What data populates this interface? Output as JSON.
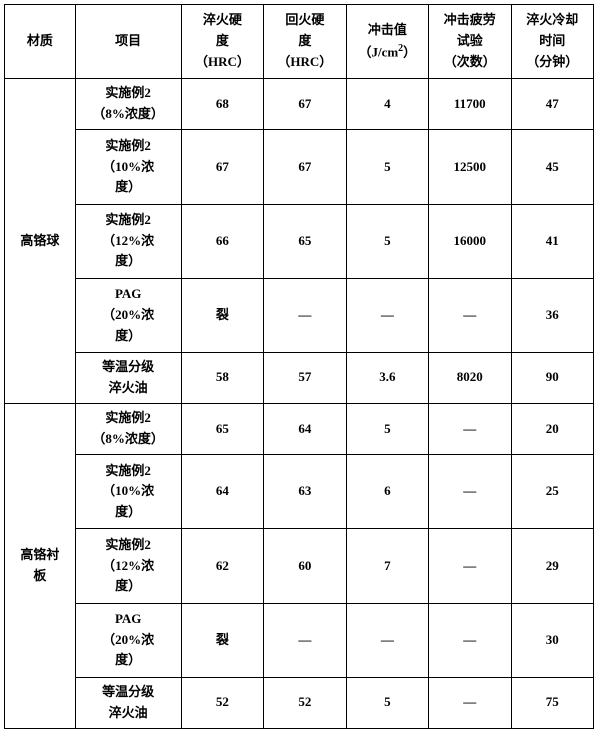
{
  "table": {
    "headers": {
      "material": "材质",
      "item": "项目",
      "quench_hardness": {
        "l1": "淬火硬",
        "l2": "度",
        "l3": "（HRC）"
      },
      "temper_hardness": {
        "l1": "回火硬",
        "l2": "度",
        "l3": "（HRC）"
      },
      "impact_value": {
        "l1": "冲击值",
        "l2_pre": "（J/cm",
        "l2_sup": "2",
        "l2_post": "）"
      },
      "fatigue_test": {
        "l1": "冲击疲劳",
        "l2": "试验",
        "l3": "（次数）"
      },
      "cooling_time": {
        "l1": "淬火冷却",
        "l2": "时间",
        "l3": "（分钟）"
      }
    },
    "groups": [
      {
        "material": "高铬球",
        "rows": [
          {
            "item_l1": "实施例2",
            "item_l2": "（8%浓度）",
            "quench": "68",
            "temper": "67",
            "impact": "4",
            "fatigue": "11700",
            "time": "47"
          },
          {
            "item_l1": "实施例2",
            "item_l2": "（10%浓",
            "item_l3": "度）",
            "quench": "67",
            "temper": "67",
            "impact": "5",
            "fatigue": "12500",
            "time": "45"
          },
          {
            "item_l1": "实施例2",
            "item_l2": "（12%浓",
            "item_l3": "度）",
            "quench": "66",
            "temper": "65",
            "impact": "5",
            "fatigue": "16000",
            "time": "41"
          },
          {
            "item_l1": "PAG",
            "item_l2": "（20%浓",
            "item_l3": "度）",
            "quench": "裂",
            "temper": "—",
            "impact": "—",
            "fatigue": "—",
            "time": "36"
          },
          {
            "item_l1": "等温分级",
            "item_l2": "淬火油",
            "quench": "58",
            "temper": "57",
            "impact": "3.6",
            "fatigue": "8020",
            "time": "90"
          }
        ]
      },
      {
        "material_l1": "高铬衬",
        "material_l2": "板",
        "rows": [
          {
            "item_l1": "实施例2",
            "item_l2": "（8%浓度）",
            "quench": "65",
            "temper": "64",
            "impact": "5",
            "fatigue": "—",
            "time": "20"
          },
          {
            "item_l1": "实施例2",
            "item_l2": "（10%浓",
            "item_l3": "度）",
            "quench": "64",
            "temper": "63",
            "impact": "6",
            "fatigue": "—",
            "time": "25"
          },
          {
            "item_l1": "实施例2",
            "item_l2": "（12%浓",
            "item_l3": "度）",
            "quench": "62",
            "temper": "60",
            "impact": "7",
            "fatigue": "—",
            "time": "29"
          },
          {
            "item_l1": "PAG",
            "item_l2": "（20%浓",
            "item_l3": "度）",
            "quench": "裂",
            "temper": "—",
            "impact": "—",
            "fatigue": "—",
            "time": "30"
          },
          {
            "item_l1": "等温分级",
            "item_l2": "淬火油",
            "quench": "52",
            "temper": "52",
            "impact": "5",
            "fatigue": "—",
            "time": "75"
          }
        ]
      }
    ]
  }
}
